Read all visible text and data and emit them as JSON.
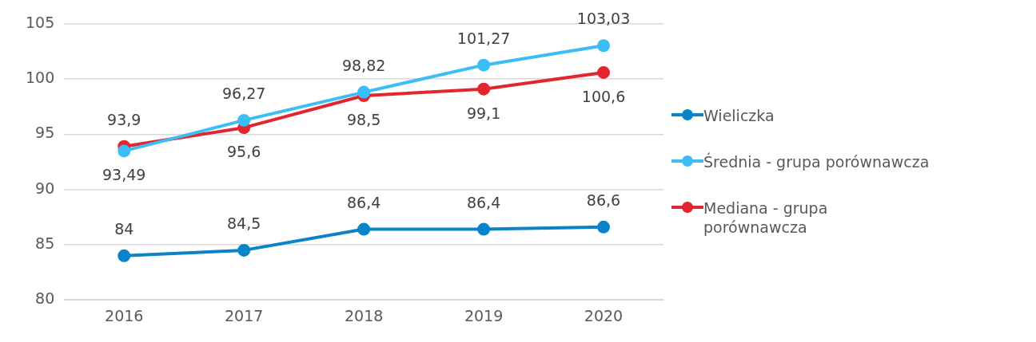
{
  "chart_data": {
    "type": "line",
    "categories": [
      "2016",
      "2017",
      "2018",
      "2019",
      "2020"
    ],
    "ylim": [
      80,
      105
    ],
    "yticks": [
      80,
      85,
      90,
      95,
      100,
      105
    ],
    "grid": "y",
    "legend": "right",
    "marker": "circle",
    "line_style": "solid",
    "series": [
      {
        "name": "Wieliczka",
        "color": "#0a84c8",
        "values": [
          84,
          84.5,
          86.4,
          86.4,
          86.6
        ],
        "value_labels": [
          "84",
          "84,5",
          "86,4",
          "86,4",
          "86,6"
        ]
      },
      {
        "name": "Średnia - grupa porównawcza",
        "color": "#3dbdf5",
        "values": [
          93.49,
          96.27,
          98.82,
          101.27,
          103.03
        ],
        "value_labels": [
          "93,49",
          "96,27",
          "98,82",
          "101,27",
          "103,03"
        ]
      },
      {
        "name": "Mediana - grupa porównawcza",
        "color": "#e3262e",
        "values": [
          93.9,
          95.6,
          98.5,
          99.1,
          100.6
        ],
        "value_labels": [
          "93,9",
          "95,6",
          "98,5",
          "99,1",
          "100,6"
        ]
      }
    ]
  }
}
